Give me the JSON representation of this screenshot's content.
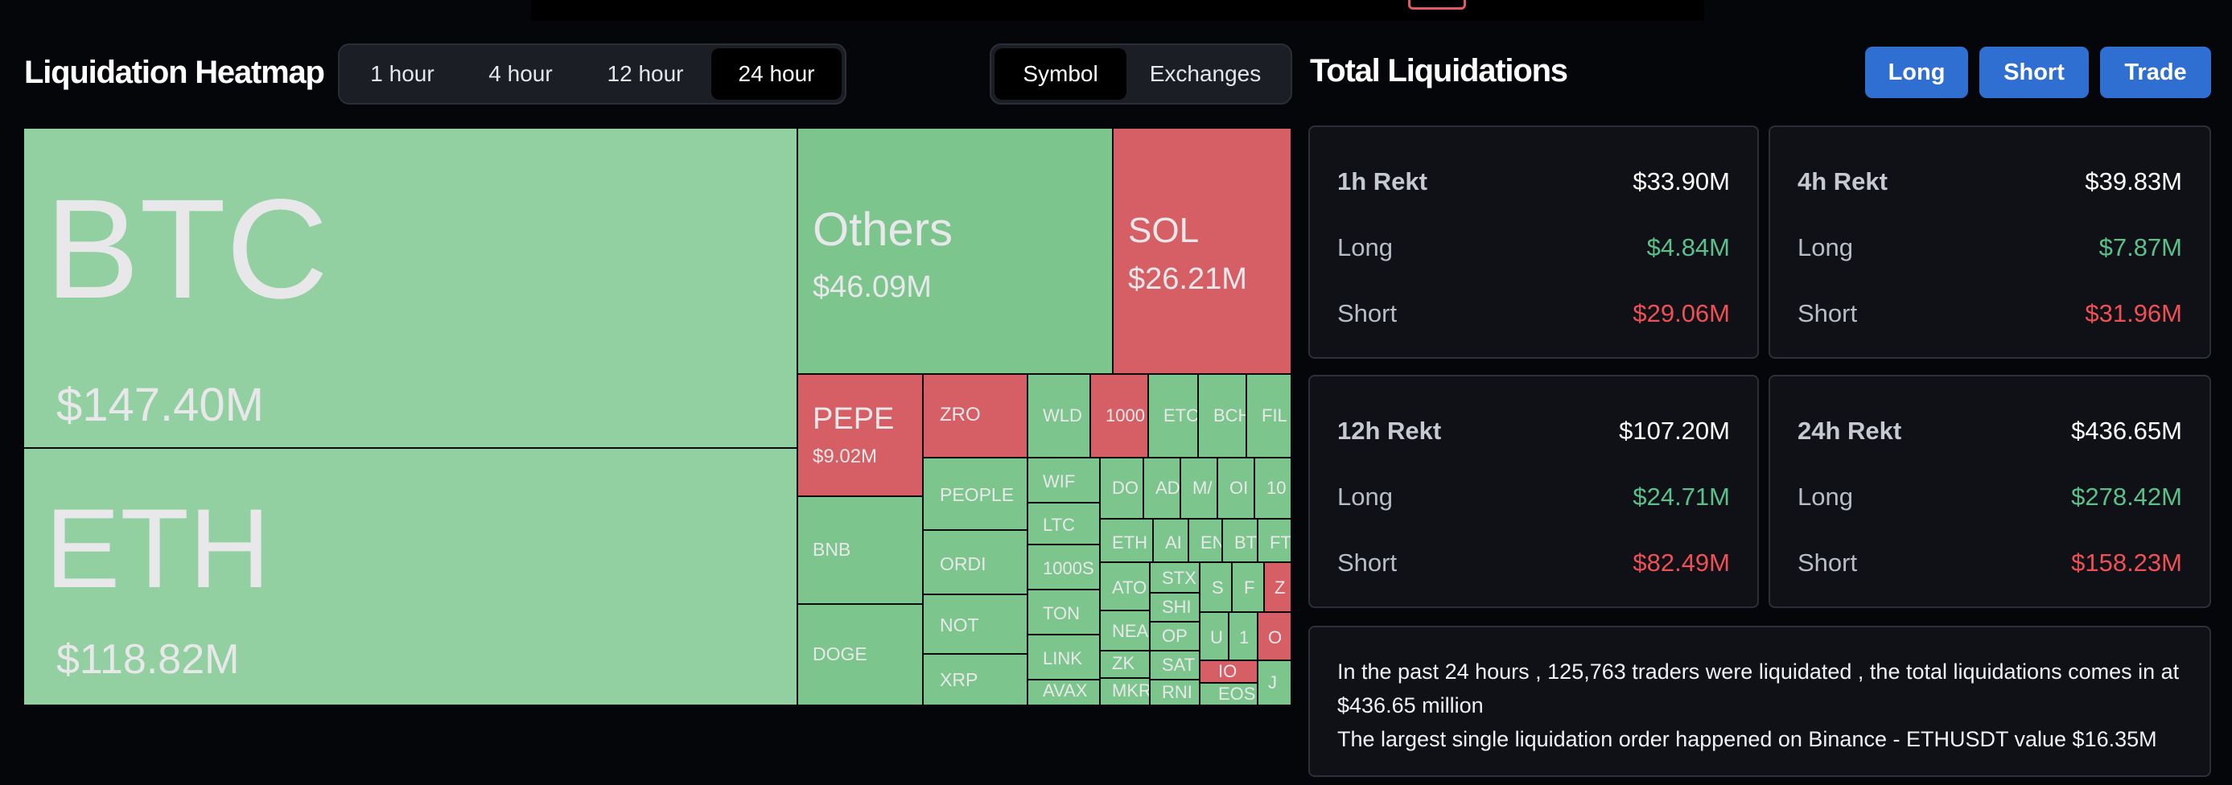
{
  "heatmap": {
    "title": "Liquidation Heatmap",
    "timeframes": [
      "1 hour",
      "4 hour",
      "12 hour",
      "24 hour"
    ],
    "active_timeframe": "24 hour",
    "views": [
      "Symbol",
      "Exchanges"
    ],
    "active_view": "Symbol"
  },
  "totals": {
    "title": "Total Liquidations",
    "buttons": {
      "long": "Long",
      "short": "Short",
      "trade": "Trade"
    },
    "cards": [
      {
        "period": "1h Rekt",
        "total": "$33.90M",
        "long_label": "Long",
        "long": "$4.84M",
        "short_label": "Short",
        "short": "$29.06M"
      },
      {
        "period": "4h Rekt",
        "total": "$39.83M",
        "long_label": "Long",
        "long": "$7.87M",
        "short_label": "Short",
        "short": "$31.96M"
      },
      {
        "period": "12h Rekt",
        "total": "$107.20M",
        "long_label": "Long",
        "long": "$24.71M",
        "short_label": "Short",
        "short": "$82.49M"
      },
      {
        "period": "24h Rekt",
        "total": "$436.65M",
        "long_label": "Long",
        "long": "$278.42M",
        "short_label": "Short",
        "short": "$158.23M"
      }
    ],
    "summary_line1": "In the past 24 hours , 125,763 traders were liquidated , the total liquidations comes in at $436.65 million",
    "summary_line2": "The largest single liquidation order happened on Binance - ETHUSDT value $16.35M"
  },
  "tiles": {
    "btc": {
      "symbol": "BTC",
      "amount": "$147.40M"
    },
    "eth": {
      "symbol": "ETH",
      "amount": "$118.82M"
    },
    "others": {
      "symbol": "Others",
      "amount": "$46.09M"
    },
    "sol": {
      "symbol": "SOL",
      "amount": "$26.21M"
    },
    "pepe": {
      "symbol": "PEPE",
      "amount": "$9.02M"
    },
    "zro": "ZRO",
    "wld": "WLD",
    "k1000": "1000",
    "etc": "ETC",
    "bch": "BCH",
    "fil": "FIL",
    "people": "PEOPLE",
    "wif": "WIF",
    "ltc": "LTC",
    "k1000s": "1000S",
    "bnb": "BNB",
    "ordi": "ORDI",
    "not": "NOT",
    "ton": "TON",
    "link": "LINK",
    "doge": "DOGE",
    "xrp": "XRP",
    "avax": "AVAX",
    "do": "DO",
    "ad": "AD",
    "ma": "M/",
    "oi": "OI",
    "k10": "10",
    "eth2": "ETH",
    "ar": "AI",
    "en": "EN",
    "bt": "BT",
    "ft": "FT",
    "ato": "ATO",
    "stx": "STX",
    "s": "S",
    "f": "F",
    "z": "Z",
    "nea": "NEA",
    "shi": "SHI",
    "op": "OP",
    "u": "U",
    "one": "1",
    "o": "O",
    "zk": "ZK",
    "sat": "SAT",
    "io": "IO",
    "mkr": "MKR",
    "rnd": "RNI",
    "eos": "EOS",
    "j": "J"
  },
  "colors": {
    "background": "#05060a",
    "accent_button": "#2f6fd1",
    "long_tile": "#93d0a1",
    "short_tile": "#d65f65",
    "long_text": "#5bc08a",
    "short_text": "#ef5056"
  }
}
